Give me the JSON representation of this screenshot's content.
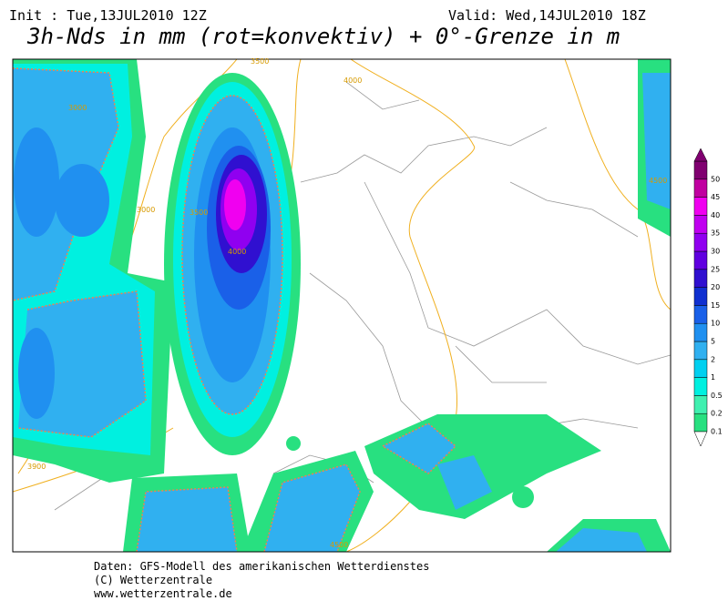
{
  "header": {
    "init": "Init : Tue,13JUL2010 12Z",
    "valid": "Valid: Wed,14JUL2010 18Z",
    "title": "3h-Nds in mm (rot=konvektiv) + 0°-Grenze in m"
  },
  "map": {
    "contour_labels": [
      3500,
      4000,
      3000,
      3000,
      3500,
      4000,
      4500,
      3900,
      4500
    ]
  },
  "legend": {
    "levels": [
      0.1,
      0.2,
      0.5,
      1,
      2,
      5,
      10,
      15,
      20,
      25,
      30,
      35,
      40,
      45,
      50
    ],
    "colors": [
      "#28e080",
      "#40f0b0",
      "#00f0e0",
      "#00d0f0",
      "#30b0f0",
      "#2090f0",
      "#1a60e8",
      "#1030d0",
      "#3010d0",
      "#6000e0",
      "#9000f0",
      "#c000f0",
      "#f000f0",
      "#c000a0",
      "#800070"
    ]
  },
  "footer": [
    "Daten: GFS-Modell des amerikanischen Wetterdienstes",
    "(C) Wetterzentrale",
    "www.wetterzentrale.de"
  ]
}
